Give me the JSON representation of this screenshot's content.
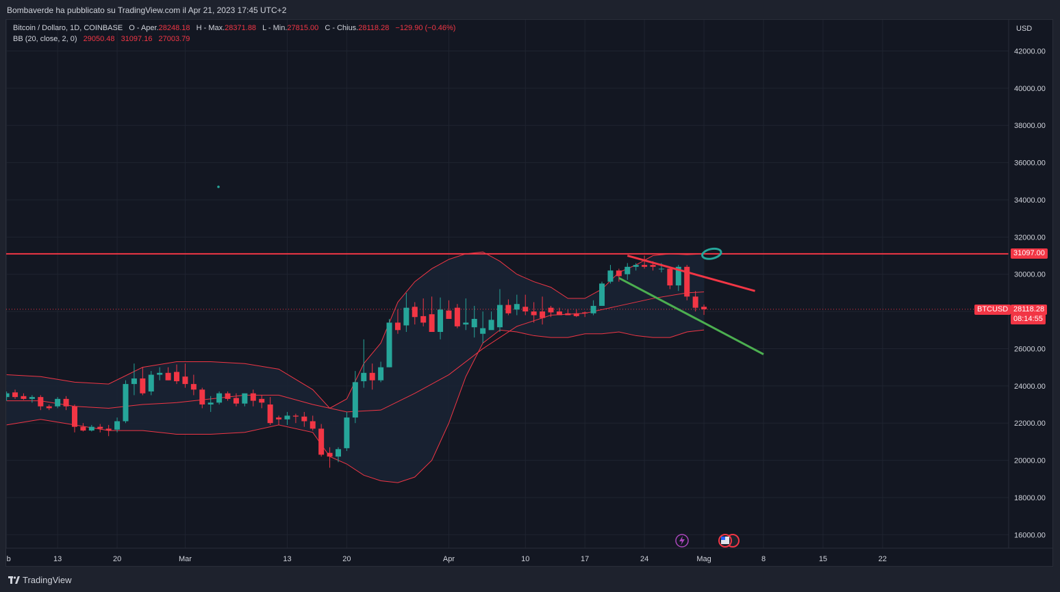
{
  "header": {
    "publisher_line": "Bombaverde ha pubblicato su TradingView.com il Apr 21, 2023 17:45 UTC+2"
  },
  "legend": {
    "symbol": "Bitcoin / Dollaro, 1D, COINBASE",
    "open_label": "O - Aper.",
    "open": "28248.18",
    "high_label": "H - Max.",
    "high": "28371.88",
    "low_label": "L - Min.",
    "low": "27815.00",
    "close_label": "C - Chius.",
    "close": "28118.28",
    "change": "−129.90 (−0.46%)",
    "bb_label": "BB (20, close, 2, 0)",
    "bb_basis": "29050.48",
    "bb_upper": "31097.16",
    "bb_lower": "27003.79"
  },
  "price_axis": {
    "currency": "USD"
  },
  "tags": {
    "resistance_value": "31097.00",
    "symbol_tag": "BTCUSD",
    "last_price": "28118.28",
    "countdown": "08:14:55"
  },
  "footer": {
    "brand": "TradingView"
  },
  "colors": {
    "up": "#26a69a",
    "down": "#f23645",
    "band": "#f23645",
    "band_fill": "#1a2233",
    "trend_red": "#f23645",
    "trend_green": "#4caf50",
    "background": "#131722"
  },
  "chart_data": {
    "type": "candlestick",
    "x_axis": {
      "tick_labels": [
        "b",
        "13",
        "20",
        "Mar",
        "13",
        "20",
        "Apr",
        "10",
        "17",
        "24",
        "Mag",
        "8",
        "15",
        "22"
      ],
      "tick_days": [
        38,
        44,
        51,
        59,
        71,
        78,
        90,
        99,
        106,
        113,
        120,
        127,
        134,
        141
      ]
    },
    "y_axis": {
      "ticks": [
        16000,
        18000,
        20000,
        22000,
        24000,
        26000,
        28000,
        30000,
        32000,
        34000,
        36000,
        38000,
        40000,
        42000
      ],
      "tick_labels": [
        "16000.00",
        "18000.00",
        "20000.00",
        "22000.00",
        "24000.00",
        "26000.00",
        "28000.00",
        "30000.00",
        "32000.00",
        "34000.00",
        "36000.00",
        "38000.00",
        "40000.00",
        "42000.00"
      ],
      "range": [
        15200,
        43000
      ]
    },
    "day_index_note_values": "day index 0 = Jan 1 2023",
    "candles": [
      [
        38,
        23400,
        23700,
        23200,
        23600
      ],
      [
        39,
        23650,
        23800,
        23300,
        23400
      ],
      [
        40,
        23450,
        23600,
        23250,
        23300
      ],
      [
        41,
        23300,
        23500,
        23100,
        23400
      ],
      [
        42,
        23400,
        23500,
        22700,
        22900
      ],
      [
        43,
        22900,
        23000,
        22700,
        22800
      ],
      [
        44,
        22900,
        23400,
        22800,
        23300
      ],
      [
        45,
        23300,
        23450,
        22700,
        22900
      ],
      [
        46,
        22900,
        23000,
        21500,
        21800
      ],
      [
        47,
        21800,
        22000,
        21550,
        21600
      ],
      [
        48,
        21600,
        21900,
        21550,
        21800
      ],
      [
        49,
        21800,
        21950,
        21500,
        21700
      ],
      [
        50,
        21700,
        21900,
        21300,
        21600
      ],
      [
        51,
        21650,
        22300,
        21500,
        22100
      ],
      [
        52,
        22100,
        24300,
        22000,
        24100
      ],
      [
        53,
        24100,
        25200,
        23500,
        24400
      ],
      [
        54,
        24400,
        25000,
        23500,
        23600
      ],
      [
        55,
        23700,
        24800,
        23500,
        24600
      ],
      [
        56,
        24600,
        25000,
        24300,
        24700
      ],
      [
        57,
        24700,
        25000,
        24300,
        24300
      ],
      [
        58,
        24750,
        25150,
        24100,
        24250
      ],
      [
        59,
        24500,
        25200,
        23900,
        24100
      ],
      [
        60,
        24100,
        24600,
        23500,
        23800
      ],
      [
        61,
        23800,
        23900,
        22800,
        23000
      ],
      [
        62,
        23000,
        23450,
        22600,
        23100
      ],
      [
        63,
        23100,
        23700,
        23000,
        23600
      ],
      [
        64,
        23600,
        23700,
        23200,
        23300
      ],
      [
        65,
        23350,
        23600,
        22900,
        23050
      ],
      [
        66,
        23050,
        23500,
        22900,
        23600
      ],
      [
        67,
        23600,
        23800,
        22900,
        23200
      ],
      [
        68,
        23300,
        23500,
        22800,
        23100
      ],
      [
        69,
        23000,
        23400,
        21900,
        22000
      ],
      [
        70,
        22300,
        22400,
        21900,
        22200
      ],
      [
        71,
        22200,
        22600,
        21900,
        22400
      ],
      [
        72,
        22400,
        22500,
        22000,
        22350
      ],
      [
        73,
        22350,
        22600,
        21800,
        22100
      ],
      [
        74,
        22100,
        22400,
        21600,
        21700
      ],
      [
        75,
        21700,
        21950,
        20200,
        20300
      ],
      [
        76,
        20400,
        20700,
        19600,
        20200
      ],
      [
        77,
        20200,
        20700,
        19900,
        20600
      ],
      [
        78,
        20650,
        22600,
        20500,
        22300
      ],
      [
        79,
        22300,
        24800,
        22000,
        24200
      ],
      [
        80,
        24250,
        26500,
        23900,
        24700
      ],
      [
        81,
        24700,
        25200,
        23800,
        24300
      ],
      [
        82,
        24300,
        25300,
        24200,
        25000
      ],
      [
        83,
        25000,
        27600,
        25000,
        27400
      ],
      [
        84,
        27400,
        28100,
        26800,
        27000
      ],
      [
        85,
        27250,
        29000,
        26900,
        28200
      ],
      [
        86,
        28250,
        28500,
        27300,
        27700
      ],
      [
        87,
        27750,
        28700,
        27200,
        27400
      ],
      [
        88,
        27850,
        28800,
        27000,
        26900
      ],
      [
        89,
        26900,
        28750,
        26500,
        28100
      ],
      [
        90,
        28050,
        28600,
        27700,
        27600
      ],
      [
        91,
        28200,
        28400,
        27100,
        27200
      ],
      [
        92,
        27300,
        28700,
        27000,
        27400
      ],
      [
        93,
        27150,
        28300,
        26600,
        27600
      ],
      [
        94,
        26800,
        28000,
        26300,
        27100
      ],
      [
        95,
        27000,
        28000,
        27200,
        27550
      ],
      [
        96,
        27150,
        29200,
        26900,
        28350
      ],
      [
        97,
        28350,
        28650,
        27800,
        27900
      ],
      [
        98,
        28100,
        28900,
        27800,
        28400
      ],
      [
        99,
        28250,
        28900,
        27800,
        28000
      ],
      [
        100,
        28000,
        28500,
        27400,
        27800
      ],
      [
        101,
        28000,
        28800,
        27300,
        27650
      ],
      [
        102,
        28200,
        28300,
        27700,
        27950
      ],
      [
        103,
        28000,
        28200,
        27800,
        27800
      ],
      [
        104,
        27900,
        28100,
        27800,
        27800
      ],
      [
        105,
        27900,
        28100,
        27700,
        27750
      ],
      [
        106,
        27950,
        28000,
        27700,
        27900
      ],
      [
        107,
        27900,
        28600,
        27800,
        28300
      ],
      [
        108,
        28300,
        29600,
        28300,
        29500
      ],
      [
        109,
        29600,
        30500,
        29500,
        30200
      ],
      [
        110,
        30200,
        30300,
        29600,
        29900
      ],
      [
        111,
        30000,
        30600,
        29700,
        30400
      ],
      [
        112,
        30400,
        30600,
        30200,
        30500
      ],
      [
        113,
        30500,
        31000,
        30300,
        30400
      ],
      [
        114,
        30500,
        30700,
        30200,
        30400
      ],
      [
        115,
        30300,
        30600,
        30100,
        30300
      ],
      [
        116,
        30300,
        30400,
        29200,
        29400
      ],
      [
        117,
        29400,
        30500,
        29100,
        30400
      ],
      [
        118,
        30400,
        30500,
        28600,
        28800
      ],
      [
        119,
        28800,
        29100,
        28000,
        28200
      ],
      [
        120,
        28250,
        28370,
        27815,
        28118
      ]
    ],
    "bollinger": {
      "label": "BB (20, close, 2, 0)",
      "upper": [
        [
          38,
          24600
        ],
        [
          42,
          24500
        ],
        [
          46,
          24200
        ],
        [
          50,
          24100
        ],
        [
          54,
          25000
        ],
        [
          58,
          25300
        ],
        [
          62,
          25300
        ],
        [
          66,
          25200
        ],
        [
          70,
          24900
        ],
        [
          74,
          23800
        ],
        [
          76,
          22800
        ],
        [
          78,
          23300
        ],
        [
          80,
          25200
        ],
        [
          82,
          26300
        ],
        [
          84,
          28500
        ],
        [
          86,
          29600
        ],
        [
          88,
          30300
        ],
        [
          90,
          30800
        ],
        [
          92,
          31100
        ],
        [
          94,
          31200
        ],
        [
          96,
          30700
        ],
        [
          98,
          30000
        ],
        [
          100,
          29600
        ],
        [
          102,
          29300
        ],
        [
          104,
          28700
        ],
        [
          106,
          28700
        ],
        [
          108,
          29200
        ],
        [
          110,
          30100
        ],
        [
          112,
          30500
        ],
        [
          114,
          31000
        ],
        [
          116,
          31100
        ],
        [
          118,
          31050
        ],
        [
          120,
          31097
        ]
      ],
      "basis": [
        [
          38,
          23200
        ],
        [
          42,
          23200
        ],
        [
          46,
          22900
        ],
        [
          50,
          22800
        ],
        [
          54,
          23000
        ],
        [
          58,
          23100
        ],
        [
          62,
          23300
        ],
        [
          66,
          23500
        ],
        [
          70,
          23500
        ],
        [
          74,
          23000
        ],
        [
          78,
          22600
        ],
        [
          82,
          22700
        ],
        [
          86,
          23600
        ],
        [
          90,
          24600
        ],
        [
          94,
          26000
        ],
        [
          98,
          27200
        ],
        [
          102,
          27800
        ],
        [
          106,
          27900
        ],
        [
          108,
          28100
        ],
        [
          110,
          28300
        ],
        [
          114,
          28700
        ],
        [
          118,
          29000
        ],
        [
          120,
          29050
        ]
      ],
      "lower": [
        [
          38,
          21900
        ],
        [
          42,
          22200
        ],
        [
          46,
          21900
        ],
        [
          50,
          21600
        ],
        [
          54,
          21600
        ],
        [
          58,
          21400
        ],
        [
          62,
          21400
        ],
        [
          66,
          21500
        ],
        [
          70,
          21900
        ],
        [
          74,
          21500
        ],
        [
          76,
          20200
        ],
        [
          78,
          19800
        ],
        [
          80,
          19200
        ],
        [
          82,
          18900
        ],
        [
          84,
          18800
        ],
        [
          86,
          19100
        ],
        [
          88,
          20000
        ],
        [
          90,
          22000
        ],
        [
          92,
          24500
        ],
        [
          94,
          26300
        ],
        [
          96,
          27000
        ],
        [
          98,
          26900
        ],
        [
          100,
          26700
        ],
        [
          102,
          26600
        ],
        [
          104,
          26600
        ],
        [
          106,
          26800
        ],
        [
          108,
          26800
        ],
        [
          110,
          26900
        ],
        [
          112,
          26700
        ],
        [
          114,
          26600
        ],
        [
          116,
          26600
        ],
        [
          118,
          26900
        ],
        [
          120,
          27004
        ]
      ]
    },
    "annotations": {
      "resistance": {
        "price": 31097,
        "color": "#f23645"
      },
      "descending_line_red": {
        "from": [
          111,
          31000
        ],
        "to": [
          126,
          29100
        ]
      },
      "descending_line_green": {
        "from": [
          110,
          29800
        ],
        "to": [
          127,
          25700
        ]
      },
      "ellipse_marker": {
        "day": 120.5,
        "price": 31100
      }
    },
    "last_price_line": 28118.28,
    "grid": true
  }
}
